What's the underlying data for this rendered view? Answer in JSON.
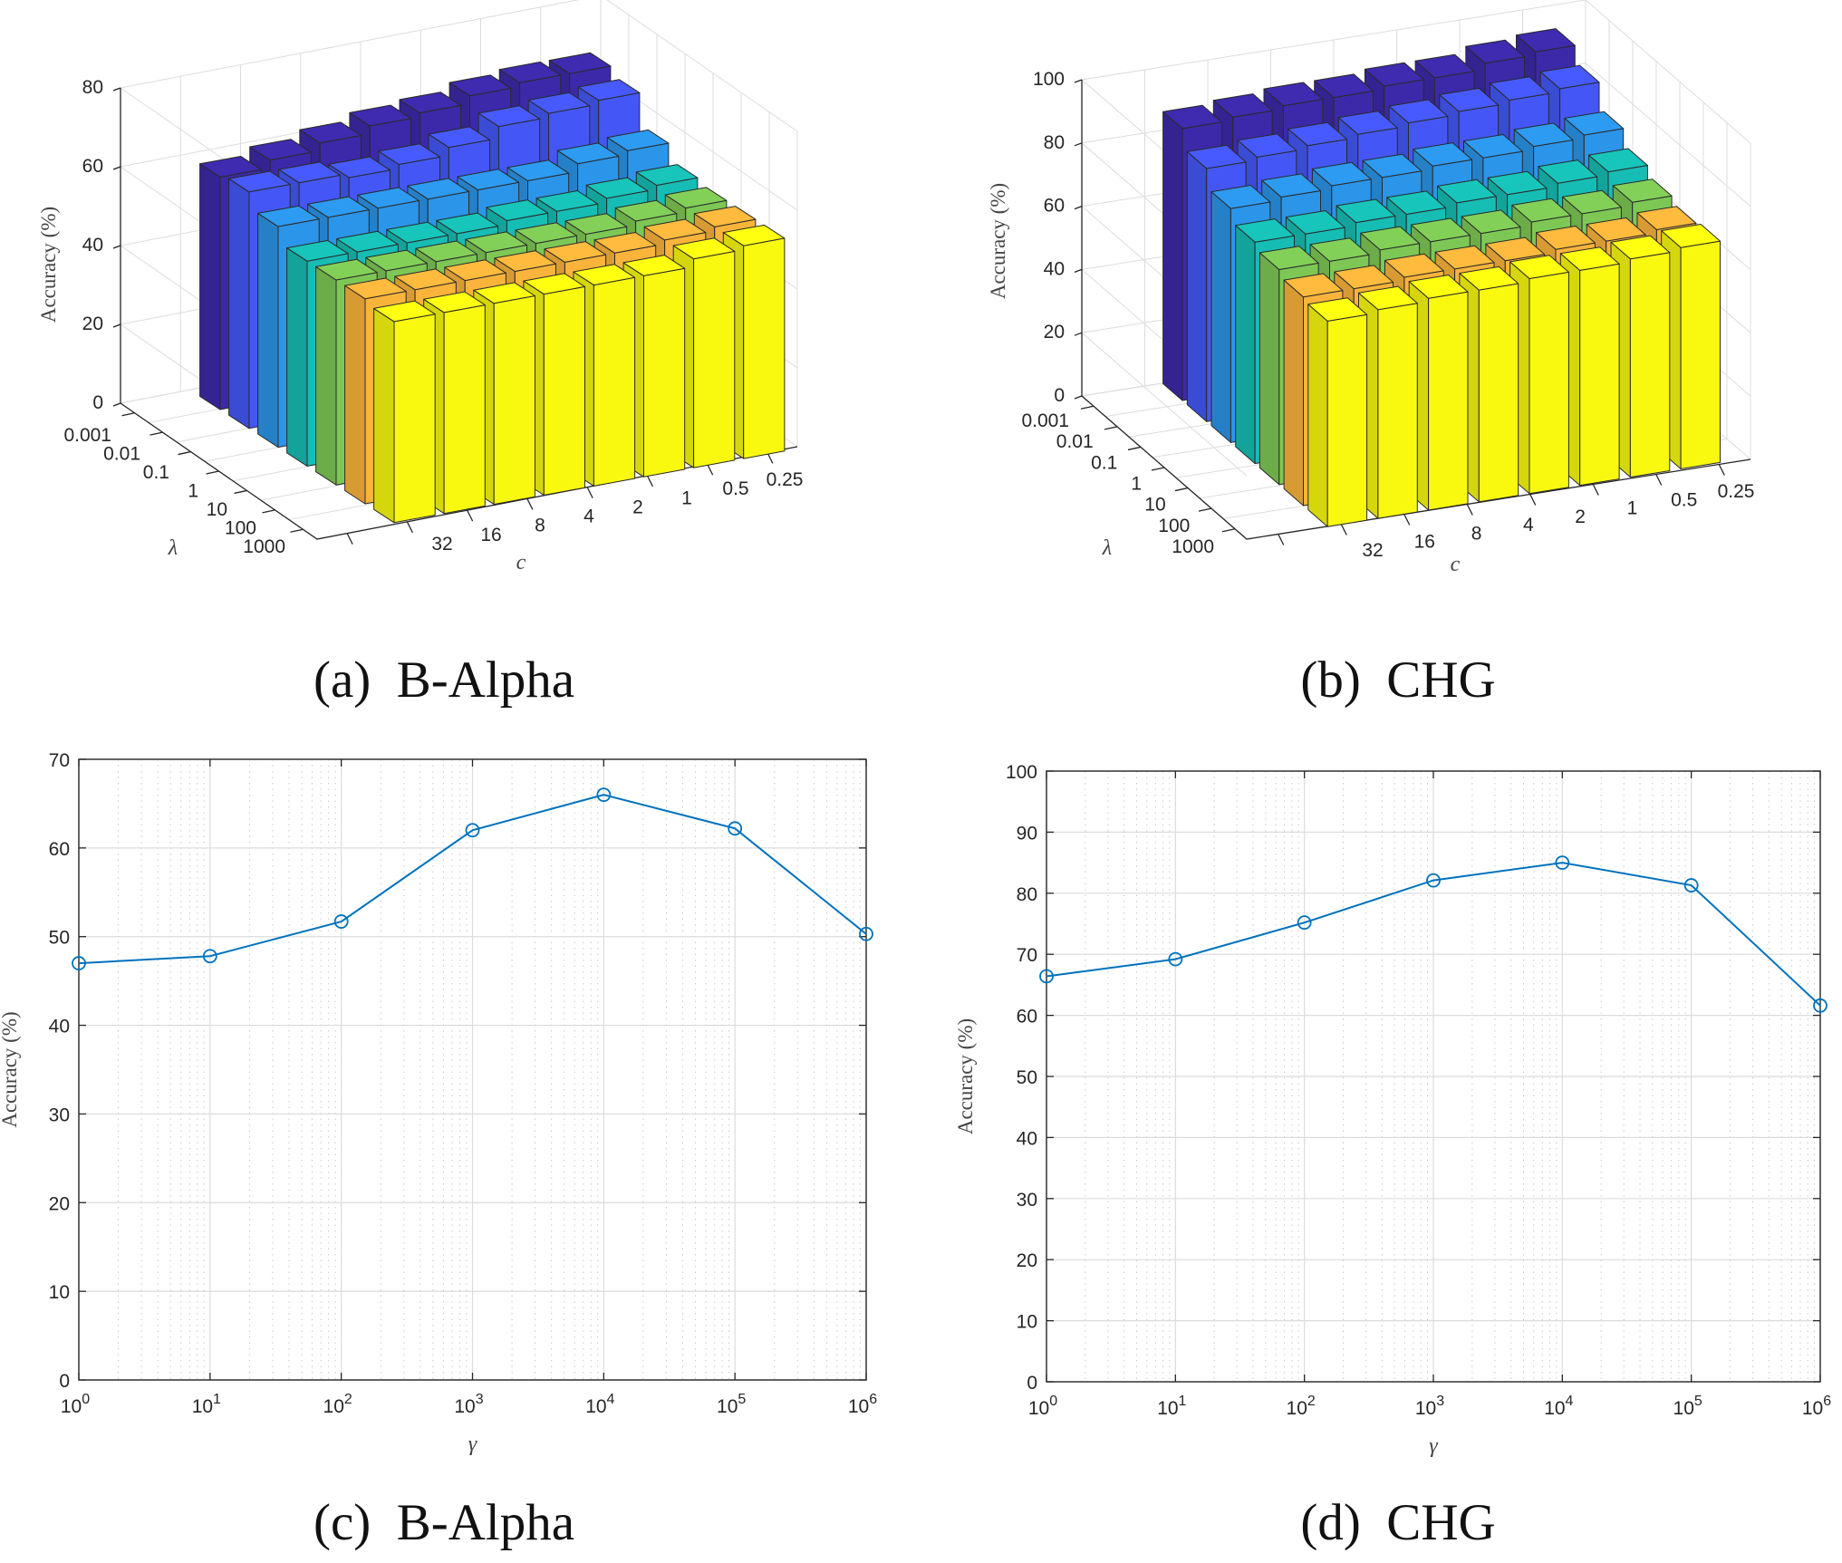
{
  "captions": {
    "a": "(a)  B-Alpha",
    "b": "(b)  CHG",
    "c": "(c)  B-Alpha",
    "d": "(d)  CHG"
  },
  "colors": {
    "row_colors": [
      "#3c29a9",
      "#4457f6",
      "#2b95e9",
      "#16bdb4",
      "#7dc855",
      "#fbb43b",
      "#f9f90f"
    ],
    "line": "#0072bd",
    "grid": "#dcdcdc",
    "axis": "#262626"
  },
  "chart_data": [
    {
      "type": "bar3d",
      "caption": "(a)  B-Alpha",
      "xlabel": "c",
      "ylabel": "λ",
      "zlabel": "Accuracy (%)",
      "x_categories": [
        "32",
        "16",
        "8",
        "4",
        "2",
        "1",
        "0.5",
        "0.25"
      ],
      "y_categories": [
        "0.001",
        "0.01",
        "0.1",
        "1",
        "10",
        "100",
        "1000"
      ],
      "zlim": [
        0,
        80
      ],
      "zticks": [
        "0",
        "20",
        "40",
        "60",
        "80"
      ],
      "grid": true,
      "values": [
        [
          59,
          61,
          63,
          65,
          66,
          68,
          69,
          69
        ],
        [
          60,
          60,
          59,
          60,
          62,
          65,
          66,
          67
        ],
        [
          56,
          56,
          56,
          56,
          56,
          56,
          58,
          59
        ],
        [
          52,
          52,
          52,
          52,
          53,
          53,
          54,
          55
        ],
        [
          52,
          52,
          52,
          52,
          52,
          52,
          53,
          54
        ],
        [
          52,
          52,
          52,
          52,
          52,
          52,
          53,
          54
        ],
        [
          51,
          51,
          51,
          51,
          51,
          51,
          53,
          54
        ]
      ]
    },
    {
      "type": "bar3d",
      "caption": "(b)  CHG",
      "xlabel": "c",
      "ylabel": "λ",
      "zlabel": "Accuracy (%)",
      "x_categories": [
        "32",
        "16",
        "8",
        "4",
        "2",
        "1",
        "0.5",
        "0.25"
      ],
      "y_categories": [
        "0.001",
        "0.01",
        "0.1",
        "1",
        "10",
        "100",
        "1000"
      ],
      "zlim": [
        0,
        100
      ],
      "zticks": [
        "0",
        "20",
        "40",
        "60",
        "80",
        "100"
      ],
      "grid": true,
      "values": [
        [
          86,
          87,
          88,
          88,
          89,
          89,
          91,
          92
        ],
        [
          80,
          81,
          82,
          83,
          84,
          85,
          86,
          87
        ],
        [
          74,
          75,
          76,
          76,
          77,
          77,
          78,
          79
        ],
        [
          70,
          70,
          71,
          71,
          72,
          72,
          73,
          74
        ],
        [
          68,
          68,
          69,
          69,
          69,
          70,
          70,
          71
        ],
        [
          66,
          66,
          67,
          67,
          67,
          68,
          68,
          69
        ],
        [
          65,
          66,
          67,
          67,
          68,
          68,
          69,
          70
        ]
      ]
    },
    {
      "type": "line",
      "caption": "(c)  B-Alpha",
      "xlabel": "γ",
      "ylabel": "Accuracy (%)",
      "xscale": "log",
      "x": [
        1,
        10,
        100,
        1000,
        10000,
        100000,
        1000000
      ],
      "xtick_base": "10",
      "xtick_exponents": [
        "0",
        "1",
        "2",
        "3",
        "4",
        "5",
        "6"
      ],
      "y": [
        47.0,
        47.8,
        51.7,
        62.0,
        66.0,
        62.2,
        50.3
      ],
      "ylim": [
        0,
        70
      ],
      "yticks": [
        "0",
        "10",
        "20",
        "30",
        "40",
        "50",
        "60",
        "70"
      ],
      "marker": "circle",
      "grid": true
    },
    {
      "type": "line",
      "caption": "(d)  CHG",
      "xlabel": "γ",
      "ylabel": "Accuracy (%)",
      "xscale": "log",
      "x": [
        1,
        10,
        100,
        1000,
        10000,
        100000,
        1000000
      ],
      "xtick_base": "10",
      "xtick_exponents": [
        "0",
        "1",
        "2",
        "3",
        "4",
        "5",
        "6"
      ],
      "y": [
        66.4,
        69.2,
        75.2,
        82.1,
        85.0,
        81.3,
        61.6
      ],
      "ylim": [
        0,
        100
      ],
      "yticks": [
        "0",
        "10",
        "20",
        "30",
        "40",
        "50",
        "60",
        "70",
        "80",
        "90",
        "100"
      ],
      "marker": "circle",
      "grid": true
    }
  ]
}
